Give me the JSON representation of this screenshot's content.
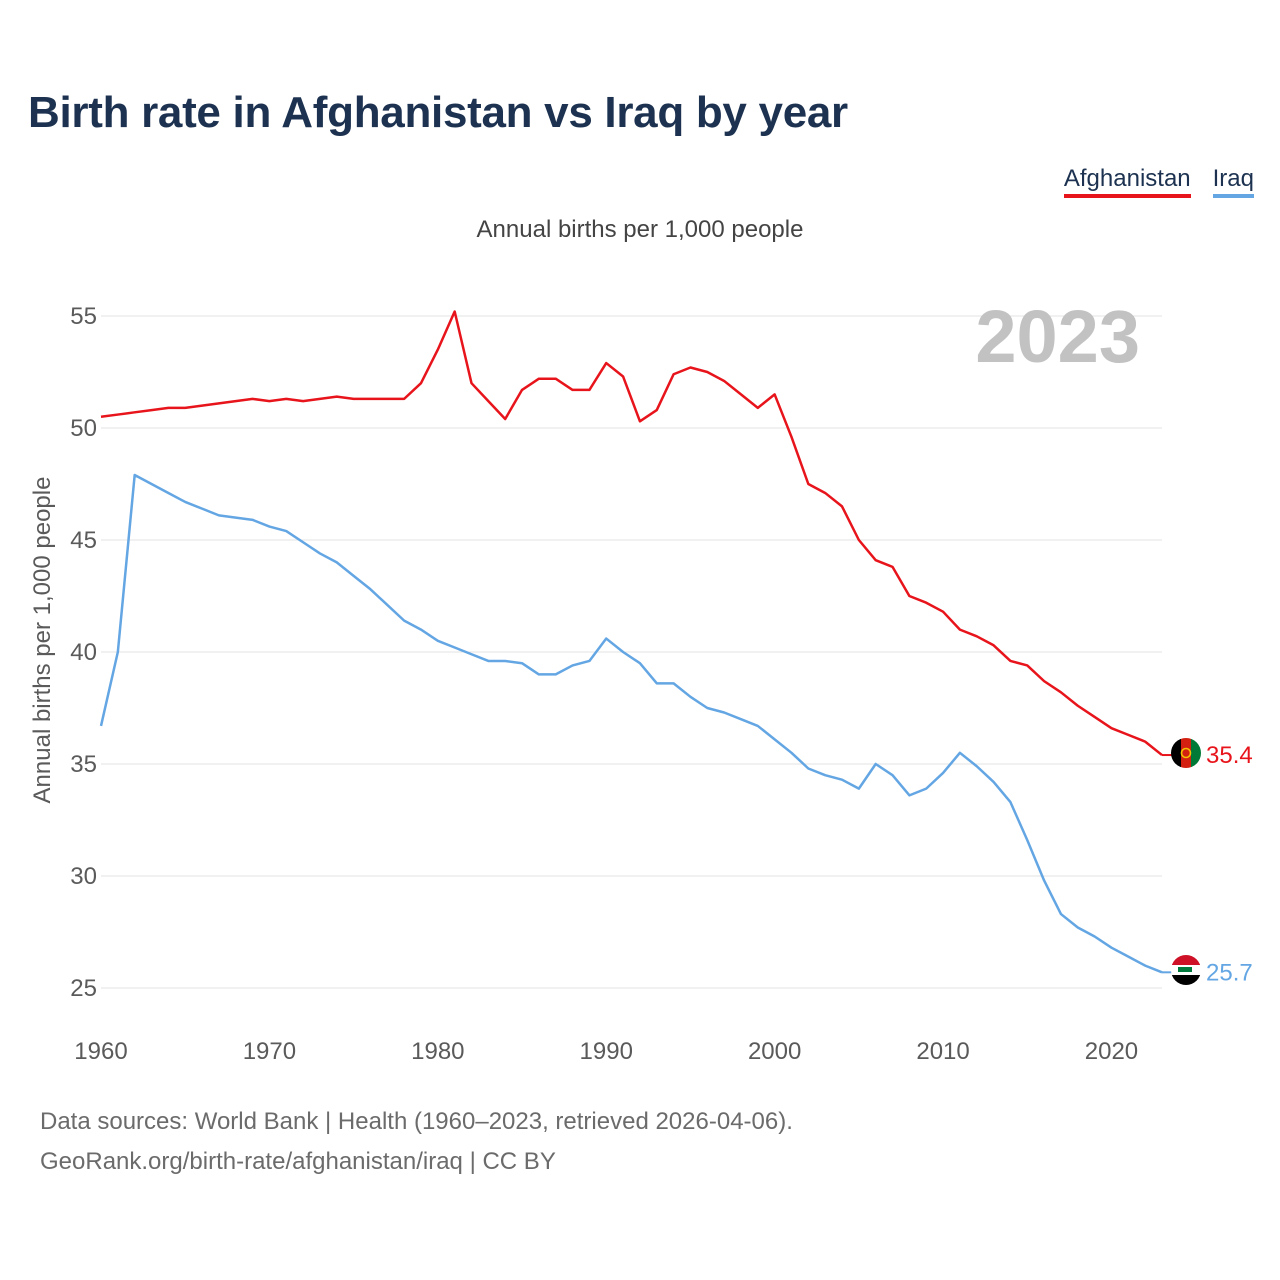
{
  "chart_data": {
    "type": "line",
    "title": "Birth rate in Afghanistan vs Iraq by year",
    "subtitle": "Annual births per 1,000 people",
    "xlabel": "",
    "ylabel": "Annual births per 1,000 people",
    "xlim": [
      1960,
      2023
    ],
    "ylim": [
      25,
      55
    ],
    "x_ticks": [
      1960,
      1970,
      1980,
      1990,
      2000,
      2010,
      2020
    ],
    "y_ticks": [
      25,
      30,
      35,
      40,
      45,
      50,
      55
    ],
    "grid": true,
    "legend_position": "top-right",
    "year_label": "2023",
    "x": [
      1960,
      1961,
      1962,
      1963,
      1964,
      1965,
      1966,
      1967,
      1968,
      1969,
      1970,
      1971,
      1972,
      1973,
      1974,
      1975,
      1976,
      1977,
      1978,
      1979,
      1980,
      1981,
      1982,
      1983,
      1984,
      1985,
      1986,
      1987,
      1988,
      1989,
      1990,
      1991,
      1992,
      1993,
      1994,
      1995,
      1996,
      1997,
      1998,
      1999,
      2000,
      2001,
      2002,
      2003,
      2004,
      2005,
      2006,
      2007,
      2008,
      2009,
      2010,
      2011,
      2012,
      2013,
      2014,
      2015,
      2016,
      2017,
      2018,
      2019,
      2020,
      2021,
      2022,
      2023
    ],
    "series": [
      {
        "name": "Afghanistan",
        "color": "#e8141b",
        "end_label": "35.4",
        "flag": "afghanistan-flag-icon",
        "values": [
          50.5,
          50.6,
          50.7,
          50.8,
          50.9,
          50.9,
          51.0,
          51.1,
          51.2,
          51.3,
          51.2,
          51.3,
          51.2,
          51.3,
          51.4,
          51.3,
          51.3,
          51.3,
          51.3,
          52.0,
          53.5,
          55.2,
          52.0,
          51.2,
          50.4,
          51.7,
          52.2,
          52.2,
          51.7,
          51.7,
          52.9,
          52.3,
          50.3,
          50.8,
          52.4,
          52.7,
          52.5,
          52.1,
          51.5,
          50.9,
          51.5,
          49.6,
          47.5,
          47.1,
          46.5,
          45.0,
          44.1,
          43.8,
          42.5,
          42.2,
          41.8,
          41.0,
          40.7,
          40.3,
          39.6,
          39.4,
          38.7,
          38.2,
          37.6,
          37.1,
          36.6,
          36.3,
          36.0,
          35.4
        ]
      },
      {
        "name": "Iraq",
        "color": "#63a6e3",
        "end_label": "25.7",
        "flag": "iraq-flag-icon",
        "values": [
          36.7,
          40.0,
          47.9,
          47.5,
          47.1,
          46.7,
          46.4,
          46.1,
          46.0,
          45.9,
          45.6,
          45.4,
          44.9,
          44.4,
          44.0,
          43.4,
          42.8,
          42.1,
          41.4,
          41.0,
          40.5,
          40.2,
          39.9,
          39.6,
          39.6,
          39.5,
          39.0,
          39.0,
          39.4,
          39.6,
          40.6,
          40.0,
          39.5,
          38.6,
          38.6,
          38.0,
          37.5,
          37.3,
          37.0,
          36.7,
          36.1,
          35.5,
          34.8,
          34.5,
          34.3,
          33.9,
          35.0,
          34.5,
          33.6,
          33.9,
          34.6,
          35.5,
          34.9,
          34.2,
          33.3,
          31.6,
          29.8,
          28.3,
          27.7,
          27.3,
          26.8,
          26.4,
          26.0,
          25.7
        ]
      }
    ]
  },
  "source_line_1": "Data sources: World Bank | Health (1960–2023, retrieved 2026-04-06).",
  "source_line_2": "GeoRank.org/birth-rate/afghanistan/iraq | CC BY"
}
